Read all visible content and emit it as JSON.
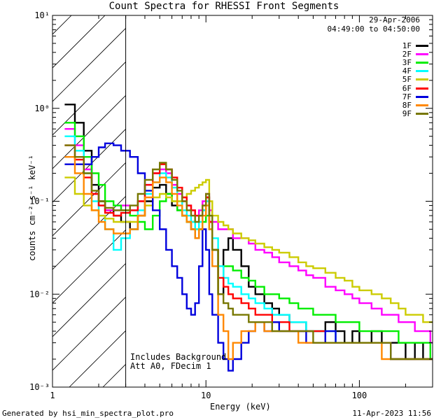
{
  "chart_data": {
    "type": "line",
    "title": "Count Spectra for RHESSI Front Segments",
    "xlabel": "Energy (keV)",
    "ylabel": "counts cm⁻² s⁻¹ keV⁻¹",
    "xscale": "log",
    "yscale": "log",
    "xlim": [
      1,
      300
    ],
    "ylim": [
      0.001,
      10
    ],
    "x_ticks": [
      "1",
      "10",
      "100"
    ],
    "y_ticks": [
      "10⁻³",
      "10⁻²",
      "10⁻¹",
      "10⁰",
      "10¹"
    ],
    "date": "29-Apr-2006",
    "time_range": "04:49:00 to 04:50:00",
    "attenuator_boundary_keV": 3,
    "annotations": [
      "Includes Background",
      "Att A0, FDecim 1"
    ],
    "legend_position": "top-right",
    "x": [
      1.2,
      1.4,
      1.6,
      1.8,
      2.0,
      2.2,
      2.5,
      2.8,
      3.2,
      3.6,
      4.0,
      4.5,
      5.0,
      5.5,
      6.0,
      6.5,
      7.0,
      7.5,
      8.0,
      8.5,
      9.0,
      9.5,
      10,
      10.5,
      11,
      12,
      13,
      14,
      15,
      17,
      19,
      21,
      24,
      27,
      30,
      35,
      40,
      45,
      50,
      60,
      70,
      80,
      90,
      100,
      120,
      140,
      160,
      180,
      200,
      230,
      260,
      290
    ],
    "series": [
      {
        "name": "1F",
        "color": "#000000",
        "values": [
          1.1,
          0.7,
          0.35,
          0.15,
          0.1,
          0.08,
          0.07,
          0.06,
          0.05,
          0.07,
          0.1,
          0.14,
          0.15,
          0.12,
          0.09,
          0.08,
          0.07,
          0.06,
          0.05,
          0.04,
          0.05,
          0.08,
          0.11,
          0.06,
          0.03,
          0.01,
          0.03,
          0.04,
          0.03,
          0.02,
          0.012,
          0.01,
          0.008,
          0.007,
          0.006,
          0.005,
          0.005,
          0.004,
          0.004,
          0.005,
          0.004,
          0.003,
          0.004,
          0.003,
          0.004,
          0.003,
          0.003,
          0.003,
          0.002,
          0.003,
          0.002,
          0.002
        ]
      },
      {
        "name": "2F",
        "color": "#ff00ff",
        "values": [
          0.6,
          0.4,
          0.22,
          0.12,
          0.09,
          0.08,
          0.08,
          0.09,
          0.08,
          0.1,
          0.15,
          0.2,
          0.22,
          0.2,
          0.15,
          0.12,
          0.1,
          0.09,
          0.08,
          0.07,
          0.08,
          0.1,
          0.12,
          0.08,
          0.06,
          0.05,
          0.05,
          0.05,
          0.04,
          0.04,
          0.035,
          0.03,
          0.028,
          0.025,
          0.022,
          0.02,
          0.018,
          0.016,
          0.015,
          0.012,
          0.011,
          0.01,
          0.009,
          0.008,
          0.007,
          0.006,
          0.006,
          0.005,
          0.005,
          0.004,
          0.004,
          0.003
        ]
      },
      {
        "name": "3F",
        "color": "#00ee00",
        "values": [
          0.7,
          0.5,
          0.3,
          0.2,
          0.15,
          0.1,
          0.09,
          0.08,
          0.07,
          0.06,
          0.05,
          0.07,
          0.1,
          0.12,
          0.1,
          0.08,
          0.07,
          0.06,
          0.06,
          0.05,
          0.05,
          0.06,
          0.07,
          0.05,
          0.03,
          0.02,
          0.02,
          0.02,
          0.018,
          0.015,
          0.014,
          0.012,
          0.01,
          0.01,
          0.009,
          0.008,
          0.007,
          0.007,
          0.006,
          0.006,
          0.005,
          0.005,
          0.005,
          0.004,
          0.004,
          0.004,
          0.004,
          0.003,
          0.003,
          0.003,
          0.003,
          0.002
        ]
      },
      {
        "name": "4F",
        "color": "#00ffff",
        "values": [
          0.5,
          0.35,
          0.2,
          0.1,
          0.07,
          0.05,
          0.03,
          0.04,
          0.05,
          0.08,
          0.12,
          0.16,
          0.2,
          0.18,
          0.14,
          0.1,
          0.08,
          0.07,
          0.06,
          0.05,
          0.06,
          0.08,
          0.1,
          0.07,
          0.04,
          0.02,
          0.015,
          0.013,
          0.012,
          0.01,
          0.009,
          0.008,
          0.007,
          0.006,
          0.006,
          0.005,
          0.005,
          0.004,
          0.004,
          0.004,
          0.003,
          0.003,
          0.003,
          0.003,
          0.003,
          0.003,
          0.002,
          0.002,
          0.002,
          0.002,
          0.002,
          0.002
        ]
      },
      {
        "name": "5F",
        "color": "#cccc00",
        "values": [
          0.18,
          0.12,
          0.09,
          0.08,
          0.07,
          0.065,
          0.06,
          0.06,
          0.06,
          0.07,
          0.09,
          0.11,
          0.12,
          0.11,
          0.1,
          0.1,
          0.11,
          0.12,
          0.13,
          0.14,
          0.15,
          0.16,
          0.17,
          0.1,
          0.07,
          0.06,
          0.055,
          0.05,
          0.045,
          0.04,
          0.038,
          0.035,
          0.032,
          0.03,
          0.028,
          0.025,
          0.022,
          0.02,
          0.019,
          0.017,
          0.015,
          0.014,
          0.012,
          0.011,
          0.01,
          0.009,
          0.008,
          0.007,
          0.006,
          0.006,
          0.005,
          0.005
        ]
      },
      {
        "name": "6F",
        "color": "#ff0000",
        "values": [
          0.4,
          0.28,
          0.18,
          0.12,
          0.09,
          0.075,
          0.07,
          0.075,
          0.08,
          0.1,
          0.15,
          0.2,
          0.25,
          0.22,
          0.18,
          0.14,
          0.11,
          0.09,
          0.08,
          0.07,
          0.07,
          0.09,
          0.11,
          0.06,
          0.03,
          0.015,
          0.012,
          0.01,
          0.009,
          0.008,
          0.007,
          0.006,
          0.006,
          0.005,
          0.005,
          0.004,
          0.004,
          0.004,
          0.004,
          0.003,
          0.003,
          0.003,
          0.003,
          0.003,
          0.003,
          0.003,
          0.002,
          0.002,
          0.002,
          0.002,
          0.002,
          0.002
        ]
      },
      {
        "name": "7F",
        "color": "#0000dd",
        "values": [
          0.25,
          0.25,
          0.25,
          0.3,
          0.38,
          0.42,
          0.4,
          0.35,
          0.3,
          0.2,
          0.13,
          0.08,
          0.05,
          0.03,
          0.02,
          0.015,
          0.01,
          0.007,
          0.006,
          0.008,
          0.02,
          0.05,
          0.03,
          0.01,
          0.006,
          0.003,
          0.002,
          0.0015,
          0.002,
          0.003,
          0.004,
          0.005,
          0.004,
          0.005,
          0.004,
          0.004,
          0.004,
          0.003,
          0.003,
          0.004,
          0.003,
          0.003,
          0.003,
          0.003,
          0.003,
          0.003,
          0.002,
          0.002,
          0.002,
          0.002,
          0.002,
          0.002
        ]
      },
      {
        "name": "8F",
        "color": "#ff8800",
        "values": [
          0.3,
          0.2,
          0.12,
          0.08,
          0.06,
          0.05,
          0.045,
          0.045,
          0.05,
          0.07,
          0.11,
          0.16,
          0.18,
          0.16,
          0.12,
          0.09,
          0.07,
          0.06,
          0.05,
          0.04,
          0.05,
          0.07,
          0.09,
          0.05,
          0.02,
          0.006,
          0.004,
          0.002,
          0.003,
          0.004,
          0.004,
          0.005,
          0.004,
          0.004,
          0.004,
          0.004,
          0.003,
          0.003,
          0.003,
          0.003,
          0.003,
          0.003,
          0.003,
          0.003,
          0.003,
          0.002,
          0.002,
          0.002,
          0.002,
          0.002,
          0.002,
          0.002
        ]
      },
      {
        "name": "9F",
        "color": "#777700",
        "values": [
          0.4,
          0.3,
          0.2,
          0.13,
          0.1,
          0.085,
          0.08,
          0.08,
          0.09,
          0.12,
          0.17,
          0.22,
          0.26,
          0.22,
          0.17,
          0.13,
          0.1,
          0.08,
          0.07,
          0.06,
          0.07,
          0.09,
          0.12,
          0.07,
          0.03,
          0.01,
          0.008,
          0.007,
          0.006,
          0.006,
          0.005,
          0.005,
          0.005,
          0.004,
          0.004,
          0.004,
          0.004,
          0.004,
          0.003,
          0.003,
          0.003,
          0.003,
          0.003,
          0.003,
          0.003,
          0.003,
          0.002,
          0.002,
          0.002,
          0.002,
          0.002,
          0.002
        ]
      }
    ]
  },
  "footer": {
    "generated_by": "Generated by hsi_min_spectra_plot.pro",
    "generated_on": "11-Apr-2023 11:56"
  }
}
